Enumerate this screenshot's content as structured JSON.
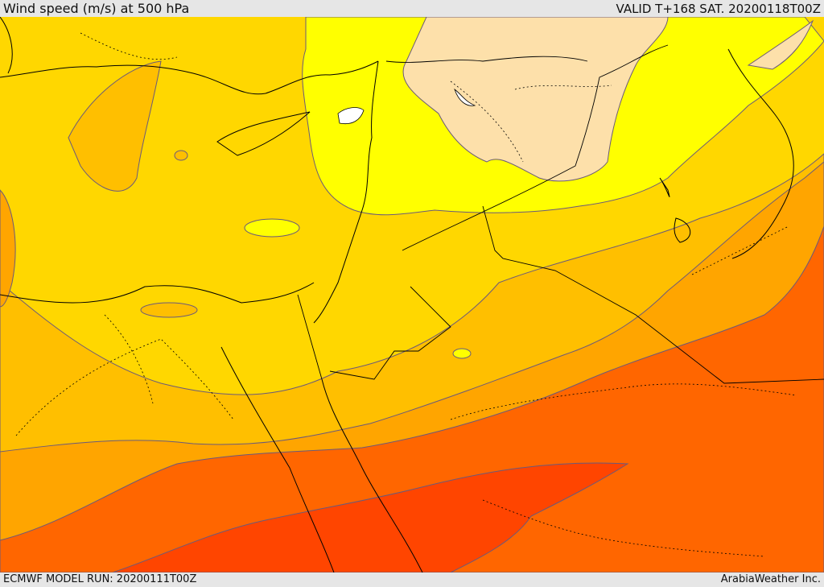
{
  "header": {
    "title": "Wind speed (m/s) at 500 hPa",
    "valid": "VALID T+168 SAT. 20200118T00Z"
  },
  "footer": {
    "model_run": "ECMWF MODEL RUN: 20200111T00Z",
    "credit": "ArabiaWeather Inc."
  },
  "map": {
    "field": "wind-speed-500hpa",
    "colors": {
      "band_lightest": "#fde0aa",
      "band_yellow": "#ffff00",
      "band_gold": "#ffd700",
      "band_amber": "#ffbf00",
      "band_orange": "#ffa500",
      "band_dark_orange": "#ff6600",
      "band_red_orange": "#ff4500",
      "contour_line": "#6b5a7a",
      "coast_border": "#000000"
    }
  }
}
